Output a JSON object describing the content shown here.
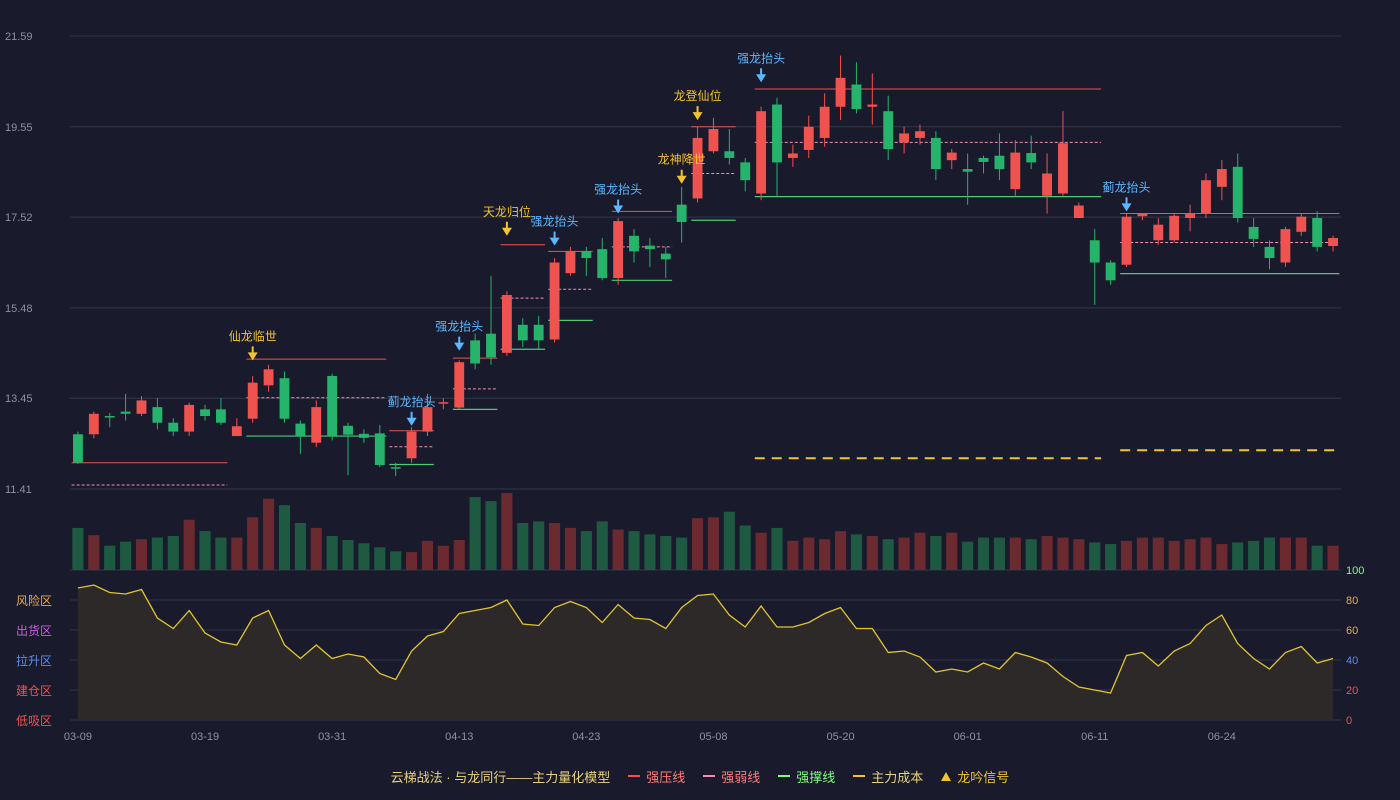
{
  "chart_data": {
    "type": "candlestick",
    "price_axis": {
      "ticks": [
        "21.59",
        "19.55",
        "17.52",
        "15.48",
        "13.45",
        "11.41"
      ],
      "ylim": [
        11.41,
        21.59
      ]
    },
    "x_tick_labels": [
      {
        "label": "03-09",
        "index": 0
      },
      {
        "label": "03-19",
        "index": 8
      },
      {
        "label": "03-31",
        "index": 16
      },
      {
        "label": "04-13",
        "index": 24
      },
      {
        "label": "04-23",
        "index": 32
      },
      {
        "label": "05-08",
        "index": 40
      },
      {
        "label": "05-20",
        "index": 48
      },
      {
        "label": "06-01",
        "index": 56
      },
      {
        "label": "06-11",
        "index": 64
      },
      {
        "label": "06-24",
        "index": 72
      }
    ],
    "candles": [
      [
        12.64,
        12.0,
        12.7,
        11.97
      ],
      [
        12.64,
        13.1,
        13.15,
        12.55
      ],
      [
        13.05,
        13.04,
        13.12,
        12.8
      ],
      [
        13.15,
        13.1,
        13.55,
        12.95
      ],
      [
        13.1,
        13.4,
        13.5,
        13.05
      ],
      [
        13.25,
        12.9,
        13.45,
        12.75
      ],
      [
        12.9,
        12.7,
        13.0,
        12.6
      ],
      [
        12.7,
        13.3,
        13.35,
        12.6
      ],
      [
        13.2,
        13.05,
        13.3,
        12.95
      ],
      [
        13.2,
        12.9,
        13.45,
        12.85
      ],
      [
        12.6,
        12.82,
        13.0,
        12.6
      ],
      [
        12.99,
        13.8,
        13.95,
        12.9
      ],
      [
        13.74,
        14.1,
        14.2,
        13.6
      ],
      [
        13.9,
        12.99,
        14.05,
        12.9
      ],
      [
        12.88,
        12.6,
        12.95,
        12.2
      ],
      [
        12.45,
        13.25,
        13.4,
        12.35
      ],
      [
        13.95,
        12.6,
        14.0,
        12.5
      ],
      [
        12.83,
        12.63,
        12.9,
        11.72
      ],
      [
        12.65,
        12.56,
        12.75,
        12.45
      ],
      [
        12.66,
        11.95,
        12.85,
        11.9
      ],
      [
        11.9,
        11.88,
        12.0,
        11.7
      ],
      [
        12.1,
        12.7,
        12.8,
        12.0
      ],
      [
        12.7,
        13.25,
        13.55,
        12.6
      ],
      [
        13.36,
        13.36,
        13.45,
        13.2
      ],
      [
        13.24,
        14.26,
        14.3,
        13.2
      ],
      [
        14.75,
        14.23,
        14.9,
        14.1
      ],
      [
        14.9,
        14.37,
        16.2,
        14.2
      ],
      [
        14.47,
        15.77,
        15.85,
        14.4
      ],
      [
        15.1,
        14.75,
        15.25,
        14.6
      ],
      [
        15.1,
        14.75,
        15.3,
        14.55
      ],
      [
        14.77,
        16.5,
        16.6,
        14.7
      ],
      [
        16.26,
        16.75,
        16.85,
        16.2
      ],
      [
        16.75,
        16.6,
        16.85,
        16.2
      ],
      [
        16.8,
        16.15,
        17.05,
        16.1
      ],
      [
        16.15,
        17.43,
        17.5,
        16.0
      ],
      [
        17.1,
        16.75,
        17.25,
        16.5
      ],
      [
        16.88,
        16.8,
        17.05,
        16.4
      ],
      [
        16.7,
        16.57,
        16.85,
        16.15
      ],
      [
        17.8,
        17.41,
        18.2,
        16.95
      ],
      [
        17.94,
        19.3,
        19.55,
        17.85
      ],
      [
        19.0,
        19.5,
        19.75,
        18.95
      ],
      [
        19.0,
        18.85,
        19.5,
        18.7
      ],
      [
        18.75,
        18.35,
        18.85,
        18.1
      ],
      [
        18.05,
        19.9,
        20.0,
        17.9
      ],
      [
        20.05,
        18.75,
        20.2,
        18.0
      ],
      [
        18.85,
        18.95,
        19.15,
        18.65
      ],
      [
        19.03,
        19.55,
        19.8,
        18.85
      ],
      [
        19.3,
        20.0,
        20.3,
        19.1
      ],
      [
        20.0,
        20.65,
        21.15,
        19.7
      ],
      [
        20.5,
        19.95,
        21.0,
        19.85
      ],
      [
        20.0,
        20.05,
        20.75,
        19.6
      ],
      [
        19.9,
        19.05,
        20.25,
        18.8
      ],
      [
        19.2,
        19.4,
        19.55,
        18.95
      ],
      [
        19.3,
        19.45,
        19.6,
        19.15
      ],
      [
        19.3,
        18.6,
        19.45,
        18.35
      ],
      [
        18.8,
        18.97,
        19.05,
        18.6
      ],
      [
        18.6,
        18.54,
        18.95,
        17.8
      ],
      [
        18.85,
        18.76,
        18.9,
        18.5
      ],
      [
        18.9,
        18.6,
        19.4,
        18.35
      ],
      [
        18.15,
        18.97,
        19.25,
        18.0
      ],
      [
        18.96,
        18.75,
        19.35,
        18.6
      ],
      [
        18.0,
        18.5,
        18.95,
        17.6
      ],
      [
        18.05,
        19.18,
        19.9,
        18.0
      ],
      [
        17.5,
        17.78,
        17.85,
        17.55
      ],
      [
        17.0,
        16.5,
        17.25,
        15.55
      ],
      [
        16.5,
        16.1,
        16.55,
        16.0
      ],
      [
        16.45,
        17.53,
        17.6,
        16.4
      ],
      [
        17.54,
        17.6,
        17.6,
        17.45
      ],
      [
        17.0,
        17.35,
        17.5,
        16.9
      ],
      [
        17.0,
        17.55,
        17.6,
        16.95
      ],
      [
        17.5,
        17.6,
        17.8,
        17.2
      ],
      [
        17.6,
        18.35,
        18.5,
        17.5
      ],
      [
        18.2,
        18.6,
        18.8,
        17.9
      ],
      [
        18.65,
        17.5,
        18.95,
        17.4
      ],
      [
        17.3,
        17.03,
        17.5,
        16.85
      ],
      [
        16.85,
        16.6,
        17.0,
        16.35
      ],
      [
        16.5,
        17.25,
        17.3,
        16.4
      ],
      [
        17.19,
        17.53,
        17.6,
        17.1
      ],
      [
        17.5,
        16.85,
        17.65,
        16.75
      ],
      [
        16.87,
        17.05,
        17.1,
        16.75
      ]
    ],
    "volume": [
      52,
      43,
      30,
      35,
      38,
      40,
      42,
      62,
      48,
      40,
      40,
      65,
      88,
      80,
      58,
      52,
      42,
      37,
      33,
      28,
      23,
      22,
      36,
      30,
      37,
      90,
      85,
      95,
      58,
      60,
      58,
      52,
      48,
      60,
      50,
      48,
      44,
      42,
      40,
      64,
      65,
      72,
      55,
      46,
      52,
      36,
      40,
      38,
      48,
      44,
      42,
      38,
      40,
      46,
      42,
      46,
      35,
      40,
      40,
      40,
      38,
      42,
      40,
      38,
      34,
      32,
      36,
      40,
      40,
      36,
      38,
      40,
      32,
      34,
      36,
      40,
      40,
      40,
      30,
      30
    ],
    "volume_ylim": [
      0,
      100
    ],
    "indicator": {
      "name_zones": [
        "风险区",
        "出货区",
        "拉升区",
        "建仓区",
        "低吸区"
      ],
      "ticks": [
        "100",
        "80",
        "60",
        "40",
        "20",
        "0"
      ],
      "ylim": [
        0,
        100
      ],
      "values": [
        88,
        90,
        85,
        84,
        87,
        68,
        61,
        73,
        58,
        52,
        50,
        68,
        73,
        50,
        41,
        50,
        41,
        44,
        42,
        31,
        27,
        46,
        56,
        59,
        71,
        73,
        75,
        80,
        64,
        63,
        75,
        79,
        75,
        65,
        77,
        68,
        67,
        61,
        75,
        83,
        84,
        70,
        62,
        76,
        62,
        62,
        65,
        71,
        75,
        61,
        61,
        45,
        46,
        42,
        32,
        34,
        32,
        38,
        34,
        45,
        42,
        38,
        29,
        22,
        20,
        18,
        43,
        45,
        36,
        46,
        51,
        63,
        70,
        51,
        41,
        34,
        45,
        49,
        38,
        41
      ]
    },
    "levels": [
      {
        "kind": "strong_resist",
        "from": 0,
        "to": 9,
        "y": 12.0
      },
      {
        "kind": "weak_line",
        "from": 0,
        "to": 9,
        "y": 11.5
      },
      {
        "kind": "strong_resist",
        "from": 11,
        "to": 19,
        "y": 14.33
      },
      {
        "kind": "weak_line",
        "from": 11,
        "to": 19,
        "y": 13.46
      },
      {
        "kind": "strong_support",
        "from": 11,
        "to": 19,
        "y": 12.6
      },
      {
        "kind": "strong_resist",
        "from": 20,
        "to": 22,
        "y": 12.72
      },
      {
        "kind": "weak_line",
        "from": 20,
        "to": 22,
        "y": 12.36
      },
      {
        "kind": "strong_support",
        "from": 20,
        "to": 22,
        "y": 11.96
      },
      {
        "kind": "strong_resist",
        "from": 24,
        "to": 26,
        "y": 14.35
      },
      {
        "kind": "weak_line",
        "from": 24,
        "to": 26,
        "y": 13.66
      },
      {
        "kind": "strong_support",
        "from": 24,
        "to": 26,
        "y": 13.2
      },
      {
        "kind": "strong_resist",
        "from": 27,
        "to": 29,
        "y": 16.9
      },
      {
        "kind": "weak_line",
        "from": 27,
        "to": 29,
        "y": 15.7
      },
      {
        "kind": "strong_support",
        "from": 27,
        "to": 29,
        "y": 14.55
      },
      {
        "kind": "strong_resist",
        "from": 30,
        "to": 32,
        "y": 16.75
      },
      {
        "kind": "weak_line",
        "from": 30,
        "to": 32,
        "y": 15.9
      },
      {
        "kind": "strong_support",
        "from": 30,
        "to": 32,
        "y": 15.2
      },
      {
        "kind": "strong_resist",
        "from": 34,
        "to": 37,
        "y": 17.65
      },
      {
        "kind": "weak_line",
        "from": 34,
        "to": 37,
        "y": 16.85
      },
      {
        "kind": "strong_support",
        "from": 34,
        "to": 37,
        "y": 16.1
      },
      {
        "kind": "strong_resist",
        "from": 39,
        "to": 41,
        "y": 19.55
      },
      {
        "kind": "weak_line",
        "from": 39,
        "to": 41,
        "y": 18.5
      },
      {
        "kind": "strong_support",
        "from": 39,
        "to": 41,
        "y": 17.45
      },
      {
        "kind": "strong_resist",
        "from": 43,
        "to": 64,
        "y": 20.4
      },
      {
        "kind": "weak_line",
        "from": 43,
        "to": 64,
        "y": 19.2
      },
      {
        "kind": "strong_support",
        "from": 43,
        "to": 64,
        "y": 17.98
      },
      {
        "kind": "main_cost",
        "from": 43,
        "to": 64,
        "y": 12.1
      },
      {
        "kind": "strong_resist",
        "from": 66,
        "to": 79,
        "y": 17.6
      },
      {
        "kind": "weak_line",
        "from": 66,
        "to": 79,
        "y": 16.95
      },
      {
        "kind": "strong_support",
        "from": 66,
        "to": 79,
        "y": 16.25
      },
      {
        "kind": "main_cost",
        "from": 66,
        "to": 79,
        "y": 12.28
      }
    ],
    "signals": [
      {
        "index": 11,
        "y": 14.3,
        "label": "仙龙临世",
        "color": "#f1c232"
      },
      {
        "index": 21,
        "y": 12.83,
        "label": "蓟龙抬头",
        "color": "#5bb8ff"
      },
      {
        "index": 24,
        "y": 14.52,
        "label": "强龙抬头",
        "color": "#5bb8ff"
      },
      {
        "index": 27,
        "y": 17.1,
        "label": "天龙归位",
        "color": "#f1c232"
      },
      {
        "index": 30,
        "y": 16.88,
        "label": "强龙抬头",
        "color": "#5bb8ff"
      },
      {
        "index": 34,
        "y": 17.6,
        "label": "强龙抬头",
        "color": "#5bb8ff"
      },
      {
        "index": 38,
        "y": 18.27,
        "label": "龙神降世",
        "color": "#f1c232"
      },
      {
        "index": 39,
        "y": 19.7,
        "label": "龙登仙位",
        "color": "#f1c232"
      },
      {
        "index": 43,
        "y": 20.55,
        "label": "强龙抬头",
        "color": "#5bb8ff"
      },
      {
        "index": 66,
        "y": 17.65,
        "label": "蓟龙抬头",
        "color": "#5bb8ff"
      }
    ],
    "legend": [
      {
        "label": "云梯战法 · 与龙同行——主力量化模型",
        "kind": "text",
        "color": "#e8d27a"
      },
      {
        "label": "强压线",
        "kind": "line",
        "color": "#ef5350"
      },
      {
        "label": "强弱线",
        "kind": "dash",
        "color": "#f48fb1"
      },
      {
        "label": "强撑线",
        "kind": "line",
        "color": "#7dff7d"
      },
      {
        "label": "主力成本",
        "kind": "dash",
        "color": "#f1c232"
      },
      {
        "label": "龙吟信号",
        "kind": "triangle",
        "color": "#f1c232"
      }
    ]
  },
  "colors": {
    "up": "#ef5350",
    "down": "#26b36b",
    "up_volume": "#6b2a30",
    "down_volume": "#1e5a42",
    "grid": "#34364a",
    "axis_text": "#8e90a6",
    "indicator_line": "#e2c431",
    "indicator_fill": "#2f2b28",
    "zone_risk": "#f1a94e",
    "zone_ship": "#d05be0",
    "zone_lift": "#5b8df0",
    "zone_build": "#ef5350",
    "zone_dip": "#ef5350"
  }
}
